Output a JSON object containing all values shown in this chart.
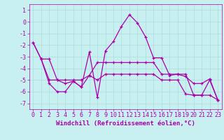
{
  "xlabel": "Windchill (Refroidissement éolien,°C)",
  "bg_color": "#c8f0f0",
  "line_color": "#aa00aa",
  "grid_color": "#aadddd",
  "xlim": [
    -0.5,
    23.5
  ],
  "ylim": [
    -7.5,
    1.5
  ],
  "yticks": [
    1,
    0,
    -1,
    -2,
    -3,
    -4,
    -5,
    -6,
    -7
  ],
  "xticks": [
    0,
    1,
    2,
    3,
    4,
    5,
    6,
    7,
    8,
    9,
    10,
    11,
    12,
    13,
    14,
    15,
    16,
    17,
    18,
    19,
    20,
    21,
    22,
    23
  ],
  "series1_x": [
    0,
    1,
    2,
    3,
    4,
    5,
    6,
    7,
    8,
    9,
    10,
    11,
    12,
    13,
    14,
    15,
    16,
    17,
    18,
    19,
    20,
    21,
    22,
    23
  ],
  "series1_y": [
    -1.8,
    -3.2,
    -3.2,
    -5.0,
    -5.0,
    -5.0,
    -5.0,
    -4.6,
    -3.5,
    -3.5,
    -3.5,
    -3.5,
    -3.5,
    -3.5,
    -3.5,
    -3.5,
    -4.5,
    -4.5,
    -4.5,
    -4.5,
    -6.3,
    -6.3,
    -6.3,
    -6.7
  ],
  "series2_x": [
    0,
    1,
    2,
    3,
    4,
    5,
    6,
    7,
    8,
    9,
    10,
    11,
    12,
    13,
    14,
    15,
    16,
    17,
    18,
    19,
    20,
    21,
    22,
    23
  ],
  "series2_y": [
    -1.8,
    -3.2,
    -5.3,
    -6.0,
    -6.0,
    -5.1,
    -5.6,
    -2.6,
    -6.5,
    -2.5,
    -1.7,
    -0.4,
    0.6,
    -0.1,
    -1.3,
    -3.1,
    -3.1,
    -4.6,
    -4.5,
    -4.7,
    -5.3,
    -5.3,
    -4.9,
    -6.7
  ],
  "series3_x": [
    1,
    2,
    3,
    4,
    5,
    6,
    7,
    8,
    9,
    10,
    11,
    12,
    13,
    14,
    15,
    16,
    17,
    18,
    19,
    20,
    21,
    22,
    23
  ],
  "series3_y": [
    -3.2,
    -5.0,
    -5.0,
    -5.3,
    -5.1,
    -5.6,
    -4.6,
    -5.0,
    -4.5,
    -4.5,
    -4.5,
    -4.5,
    -4.5,
    -4.5,
    -4.5,
    -5.0,
    -5.0,
    -5.0,
    -6.2,
    -6.3,
    -6.3,
    -5.0,
    -6.7
  ],
  "fontsize_xlabel": 6.5,
  "fontsize_ticks": 6,
  "marker_size": 2.5,
  "linewidth": 0.9
}
